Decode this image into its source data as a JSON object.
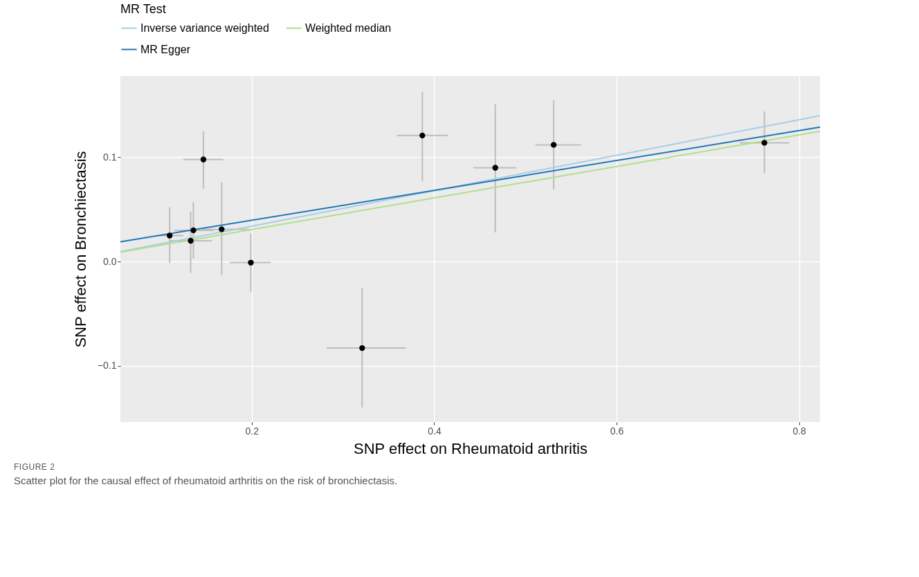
{
  "chart_data": {
    "type": "scatter",
    "xlabel": "SNP effect on Rheumatoid arthritis",
    "ylabel": "SNP effect on Bronchiectasis",
    "legend_title": "MR Test",
    "legend": "top",
    "grid": true,
    "annotations": [
      "FIGURE 2",
      "Scatter plot for the causal effect of rheumatoid arthritis on the risk of bronchiectasis."
    ],
    "xlim": [
      0.056,
      0.823
    ],
    "ylim": [
      -0.154,
      0.178
    ],
    "xticks": [
      0.2,
      0.4,
      0.6,
      0.8
    ],
    "yticks": [
      {
        "value": -0.1,
        "label": "−0.1"
      },
      {
        "value": 0,
        "label": "0.0"
      },
      {
        "value": 0.1,
        "label": "0.1"
      }
    ],
    "series": [
      {
        "marker": "circle",
        "color": "#000000",
        "x": [
          0.11,
          0.136,
          0.133,
          0.147,
          0.167,
          0.199,
          0.321,
          0.387,
          0.467,
          0.531,
          0.762
        ],
        "values": [
          0.025,
          0.03,
          0.02,
          0.098,
          0.031,
          -0.001,
          -0.083,
          0.121,
          0.09,
          0.112,
          0.114
        ],
        "errors": [
          [
            -0.001,
            0.052
          ],
          [
            0.003,
            0.057
          ],
          [
            -0.011,
            0.048
          ],
          [
            0.07,
            0.125
          ],
          [
            -0.013,
            0.076
          ],
          [
            -0.029,
            0.027
          ],
          [
            -0.14,
            -0.025
          ],
          [
            0.077,
            0.163
          ],
          [
            0.028,
            0.151
          ],
          [
            0.069,
            0.155
          ],
          [
            0.085,
            0.144
          ]
        ],
        "xerrors": [
          [
            0.095,
            0.125
          ],
          [
            0.115,
            0.158
          ],
          [
            0.11,
            0.156
          ],
          [
            0.125,
            0.169
          ],
          [
            0.146,
            0.197
          ],
          [
            0.176,
            0.221
          ],
          [
            0.282,
            0.369
          ],
          [
            0.359,
            0.415
          ],
          [
            0.443,
            0.49
          ],
          [
            0.511,
            0.561
          ],
          [
            0.735,
            0.789
          ]
        ]
      },
      {
        "type": "line",
        "name": "Inverse variance weighted",
        "color": "#a6cee3",
        "x": [
          0.056,
          0.823
        ],
        "values": [
          0.0095,
          0.14
        ]
      },
      {
        "type": "line",
        "name": "MR Egger",
        "color": "#1f78b4",
        "x": [
          0.056,
          0.823
        ],
        "values": [
          0.019,
          0.129
        ]
      },
      {
        "type": "line",
        "name": "Weighted median",
        "color": "#b2df8a",
        "x": [
          0.056,
          0.823
        ],
        "values": [
          0.009,
          0.125
        ]
      }
    ]
  }
}
